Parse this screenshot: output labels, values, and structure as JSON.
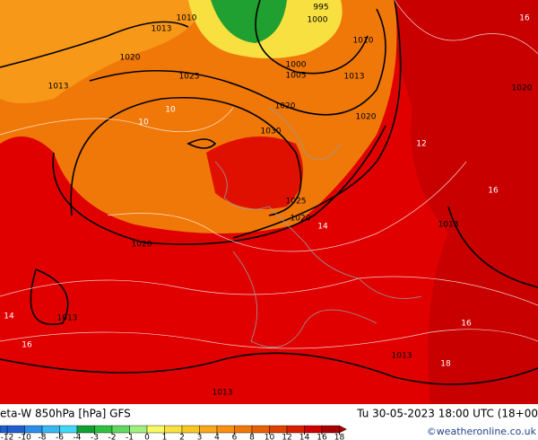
{
  "title": "eta-W 850hPa [hPa] GFS",
  "datetime": "Tu 30-05-2023 18:00 UTC (18+00",
  "copyright": "©weatheronline.co.uk",
  "colorbar": {
    "ticks": [
      -12,
      -10,
      -8,
      -6,
      -4,
      -3,
      -2,
      -1,
      0,
      1,
      2,
      3,
      4,
      6,
      8,
      10,
      12,
      14,
      16,
      18
    ],
    "colors": [
      "#1f5fd0",
      "#2a8ee8",
      "#36b8f0",
      "#40d8f8",
      "#10a030",
      "#30c040",
      "#60d860",
      "#a0f080",
      "#f8f860",
      "#f8e040",
      "#f8c820",
      "#f8a818",
      "#f89010",
      "#f07808",
      "#e86000",
      "#e04000",
      "#d82000",
      "#d00000",
      "#a80000"
    ]
  },
  "isobar_labels": [
    "1010",
    "1013",
    "995",
    "1000",
    "1010",
    "1020",
    "1025",
    "1000",
    "1005",
    "1013",
    "1013",
    "1020",
    "1020",
    "1030",
    "1025",
    "1020",
    "1020",
    "1013",
    "1013",
    "1013",
    "1013",
    "1020"
  ],
  "theta_labels": [
    "10",
    "12",
    "14",
    "16",
    "18",
    "16",
    "16",
    "14",
    "16",
    "10"
  ]
}
